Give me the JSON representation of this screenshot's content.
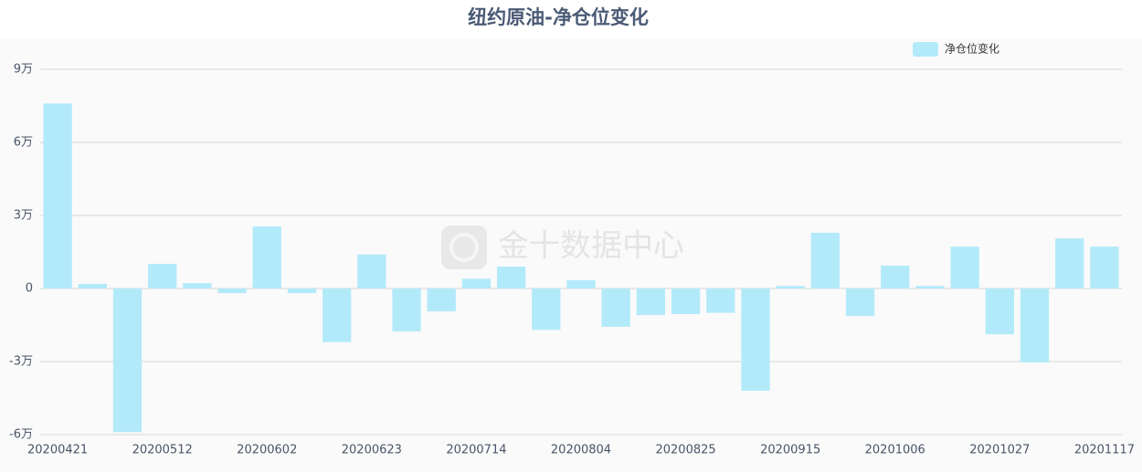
{
  "chart_data": {
    "type": "bar",
    "title": "纽约原油-净仓位变化",
    "watermark": "金十数据中心",
    "categories": [
      "20200421",
      null,
      null,
      "20200512",
      null,
      null,
      "20200602",
      null,
      null,
      "20200623",
      null,
      null,
      "20200714",
      null,
      null,
      "20200804",
      null,
      null,
      "20200825",
      null,
      null,
      "20200915",
      null,
      null,
      "20201006",
      null,
      null,
      "20201027",
      null,
      null,
      "20201117"
    ],
    "series": [
      {
        "name": "净仓位变化",
        "color": "#b3eafa",
        "values": [
          76000,
          1900,
          -59000,
          10100,
          2200,
          -1900,
          25500,
          -1900,
          -22000,
          14000,
          -17600,
          -9400,
          4000,
          9000,
          -17000,
          3400,
          -15700,
          -10900,
          -10500,
          -10000,
          -42000,
          1000,
          22900,
          -11300,
          9400,
          1000,
          17200,
          -18800,
          -30400,
          20600,
          17200
        ]
      }
    ],
    "ylim": [
      -60000,
      90000
    ],
    "yticks": [
      {
        "value": -60000,
        "label": "-6万"
      },
      {
        "value": -30000,
        "label": "-3万"
      },
      {
        "value": 0,
        "label": "0"
      },
      {
        "value": 30000,
        "label": "3万"
      },
      {
        "value": 60000,
        "label": "6万"
      },
      {
        "value": 90000,
        "label": "9万"
      }
    ],
    "grid": true,
    "legend": "top-right"
  }
}
